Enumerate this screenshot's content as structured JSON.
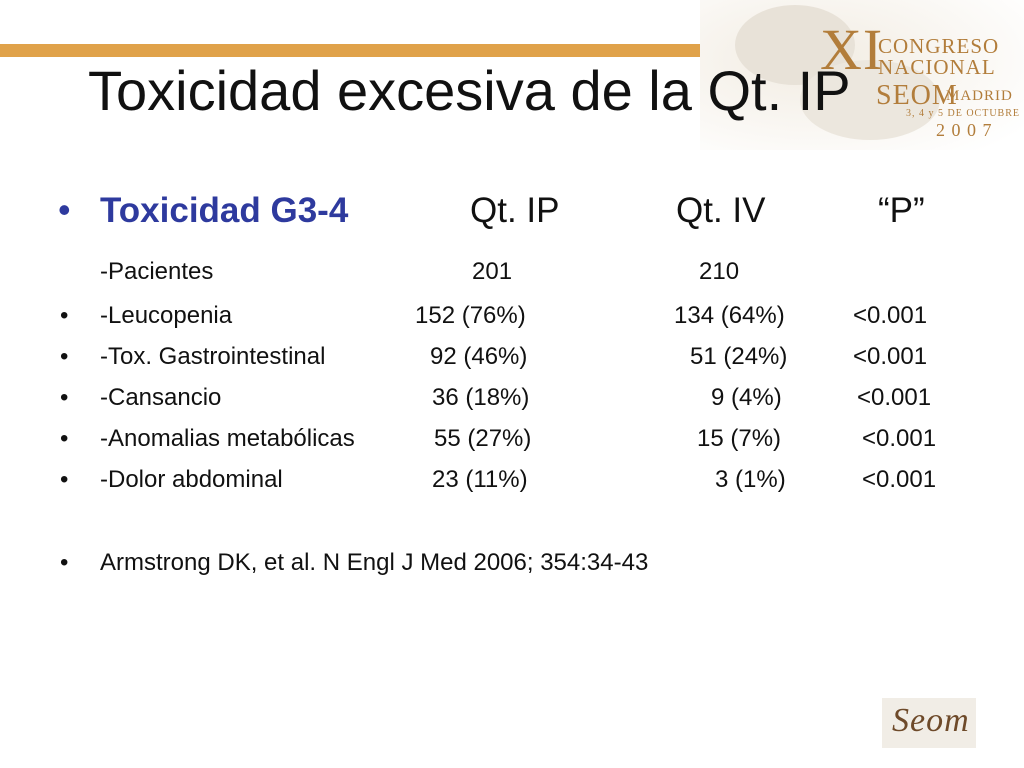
{
  "slide": {
    "title": "Toxicidad excesiva de la Qt. IP"
  },
  "logo": {
    "numeral": "XI",
    "line1": "CONGRESO",
    "line2": "NACIONAL",
    "org": "SEOM",
    "city": "MADRID",
    "dates": "3, 4 y 5 DE OCTUBRE",
    "year": "2 0 0 7",
    "corner": "Seom"
  },
  "table": {
    "header": {
      "label": "Toxicidad G3-4",
      "col_ip": "Qt. IP",
      "col_iv": "Qt. IV",
      "col_p": "“P”"
    },
    "patients": {
      "label": "-Pacientes",
      "ip": "201",
      "iv": "210"
    },
    "rows": [
      {
        "label": "-Leucopenia",
        "ip": "152 (76%)",
        "iv": "134 (64%)",
        "p": "<0.001"
      },
      {
        "label": "-Tox. Gastrointestinal",
        "ip": "92 (46%)",
        "iv": "51 (24%)",
        "p": "<0.001"
      },
      {
        "label": "-Cansancio",
        "ip": "36 (18%)",
        "iv": "9 (4%)",
        "p": "<0.001"
      },
      {
        "label": "-Anomalias metabólicas",
        "ip": "55 (27%)",
        "iv": "15 (7%)",
        "p": "<0.001"
      },
      {
        "label": "-Dolor abdominal",
        "ip": "23 (11%)",
        "iv": "3 (1%)",
        "p": "<0.001"
      }
    ]
  },
  "reference": "Armstrong DK, et al. N Engl J Med 2006; 354:34-43",
  "colors": {
    "accent_gold": "#e0a24a",
    "logo_gold": "#b27d3b",
    "header_blue": "#2e3a9e"
  },
  "icons": {
    "bullet": "•"
  }
}
